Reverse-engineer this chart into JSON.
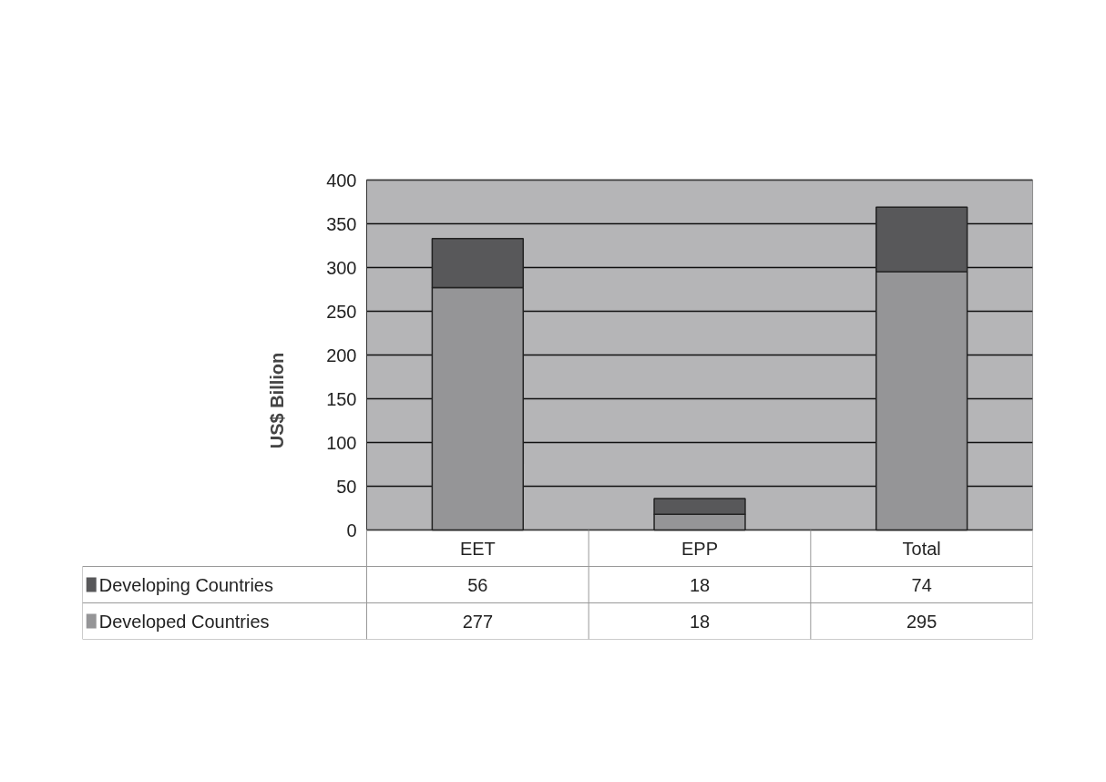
{
  "chart_data": {
    "type": "bar",
    "stacked": true,
    "ylabel": "US$ Billion",
    "categories": [
      "EET",
      "EPP",
      "Total"
    ],
    "series": [
      {
        "name": "Developed Countries",
        "color": "#959597",
        "values": [
          277,
          18,
          295
        ]
      },
      {
        "name": "Developing Countries",
        "color": "#58585a",
        "values": [
          56,
          18,
          74
        ]
      }
    ],
    "ylim": [
      0,
      400
    ],
    "yticks": [
      0,
      50,
      100,
      150,
      200,
      250,
      300,
      350,
      400
    ],
    "grid": "y",
    "legend": "bottom",
    "data_labels": true
  }
}
